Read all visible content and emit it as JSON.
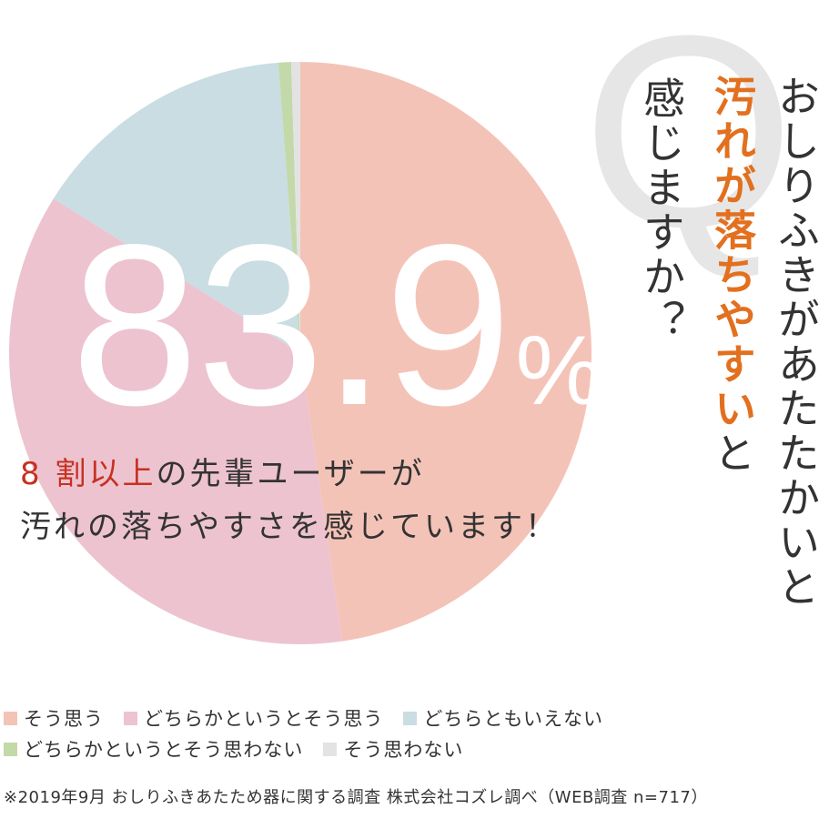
{
  "chart_data": {
    "type": "pie",
    "slices": [
      {
        "label": "そう思う",
        "value": 47.7,
        "color": "#f4c3b8"
      },
      {
        "label": "どちらかというとそう思う",
        "value": 36.2,
        "color": "#edc3d0"
      },
      {
        "label": "どちらともいえない",
        "value": 14.9,
        "color": "#c9dde2"
      },
      {
        "label": "どちらかというとそう思わない",
        "value": 0.7,
        "color": "#c3d9a9"
      },
      {
        "label": "そう思わない",
        "value": 0.5,
        "color": "#e3e3e3"
      }
    ],
    "legend_placement": "bottom"
  },
  "headline": {
    "number": "83.9",
    "unit": "%"
  },
  "summary": {
    "accent": "8 割以上",
    "line1_rest": "の先輩ユーザーが",
    "line2": "汚れの落ちやすさを感じています！"
  },
  "question": {
    "mark": "Q",
    "col1": "おしりふきがあたたかいと",
    "col2_accent": "汚れが落ちやすい",
    "col2_tail": "と",
    "col3": "感じますか？"
  },
  "legend": {
    "items": [
      {
        "label": "そう思う",
        "color": "#f4c3b8"
      },
      {
        "label": "どちらかというとそう思う",
        "color": "#edc3d0"
      },
      {
        "label": "どちらともいえない",
        "color": "#c9dde2"
      },
      {
        "label": "どちらかというとそう思わない",
        "color": "#c3d9a9"
      },
      {
        "label": "そう思わない",
        "color": "#e3e3e3"
      }
    ]
  },
  "footnote": "※2019年9月 おしりふきあたため器に関する調査 株式会社コズレ調べ（WEB調査 n=717）"
}
